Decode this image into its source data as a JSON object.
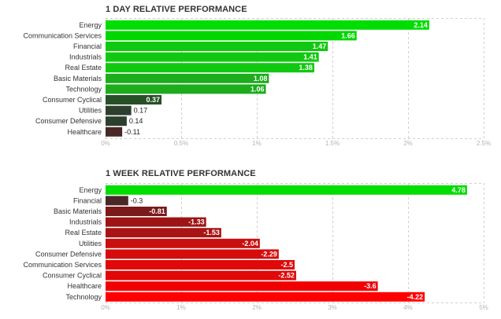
{
  "chart_data": [
    {
      "type": "bar",
      "orientation": "horizontal",
      "title": "1 DAY RELATIVE PERFORMANCE",
      "categories": [
        "Energy",
        "Communication Services",
        "Financial",
        "Industrials",
        "Real Estate",
        "Basic Materials",
        "Technology",
        "Consumer Cyclical",
        "Utilities",
        "Consumer Defensive",
        "Healthcare"
      ],
      "values": [
        2.14,
        1.66,
        1.47,
        1.41,
        1.38,
        1.08,
        1.06,
        0.37,
        0.17,
        0.14,
        -0.11
      ],
      "value_labels": [
        "2.14",
        "1.66",
        "1.47",
        "1.41",
        "1.38",
        "1.08",
        "1.06",
        "0.37",
        "0.17",
        "0.14",
        "-0.11"
      ],
      "colors": [
        "#00dd00",
        "#00d700",
        "#11c811",
        "#11c811",
        "#11c811",
        "#1cac1c",
        "#1cac1c",
        "#285028",
        "#2d3f2d",
        "#2d3f2d",
        "#4a2828"
      ],
      "xlim": [
        0,
        2.5
      ],
      "xticks": [
        0,
        0.5,
        1,
        1.5,
        2,
        2.5
      ],
      "xtick_labels": [
        "0%",
        "0.5%",
        "1%",
        "1.5%",
        "2%",
        "2.5%"
      ],
      "grid": true
    },
    {
      "type": "bar",
      "orientation": "horizontal",
      "title": "1 WEEK RELATIVE PERFORMANCE",
      "categories": [
        "Energy",
        "Financial",
        "Basic Materials",
        "Industrials",
        "Real Estate",
        "Utilities",
        "Consumer Defensive",
        "Communication Services",
        "Consumer Cyclical",
        "Healthcare",
        "Technology"
      ],
      "values": [
        4.78,
        -0.3,
        -0.81,
        -1.33,
        -1.53,
        -2.04,
        -2.29,
        -2.5,
        -2.52,
        -3.6,
        -4.22
      ],
      "value_labels": [
        "4.78",
        "-0.3",
        "-0.81",
        "-1.33",
        "-1.53",
        "-2.04",
        "-2.29",
        "-2.5",
        "-2.52",
        "-3.6",
        "-4.22"
      ],
      "colors": [
        "#00dd00",
        "#4a2828",
        "#7a1a1a",
        "#9e1414",
        "#a81414",
        "#c81010",
        "#d60c0c",
        "#e00808",
        "#e00808",
        "#f00000",
        "#ff0000"
      ],
      "xlim": [
        0,
        5
      ],
      "xticks": [
        0,
        1,
        2,
        3,
        4,
        5
      ],
      "xtick_labels": [
        "0%",
        "1%",
        "2%",
        "3%",
        "4%",
        "5%"
      ],
      "grid": true
    }
  ]
}
